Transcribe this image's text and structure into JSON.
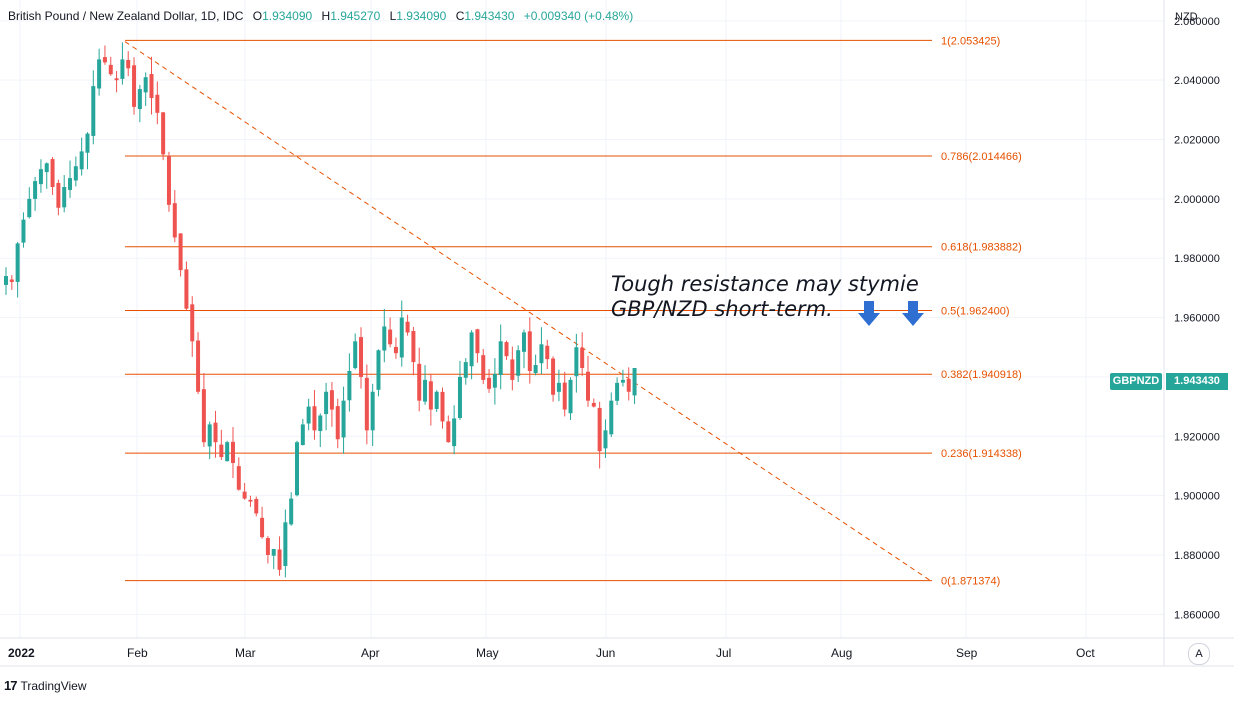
{
  "header": {
    "symbol": "British Pound / New Zealand Dollar, 1D, IDC",
    "open_label": "O",
    "open_value": "1.934090",
    "high_label": "H",
    "high_value": "1.945270",
    "low_label": "L",
    "low_value": "1.934090",
    "close_label": "C",
    "close_value": "1.943430",
    "change_value": "+0.009340 (+0.48%)"
  },
  "currency_label": "NZD",
  "price_tag": {
    "symbol": "GBPNZD",
    "value": "1.943430"
  },
  "annotation": {
    "line1": "Tough resistance may stymie",
    "line2": "GBP/NZD short-term."
  },
  "auto_button": "A",
  "branding": {
    "logo": "17",
    "name": "TradingView"
  },
  "colors": {
    "up": "#26a69a",
    "down": "#ef5350",
    "fib": "#e65100",
    "arrow": "#2962ff",
    "grid": "#f0f3fa",
    "text": "#131722"
  },
  "chart_data": {
    "type": "candlestick",
    "y_range": [
      1.85,
      2.065
    ],
    "y_ticks": [
      "2.060000",
      "2.040000",
      "2.020000",
      "2.000000",
      "1.980000",
      "1.960000",
      "1.940000",
      "1.920000",
      "1.900000",
      "1.880000",
      "1.860000"
    ],
    "x_ticks": [
      "2022",
      "Feb",
      "Mar",
      "Apr",
      "May",
      "Jun",
      "Jul",
      "Aug",
      "Sep",
      "Oct"
    ],
    "fib_levels": [
      {
        "ratio": 1,
        "value": 2.053425,
        "label": "1(2.053425)"
      },
      {
        "ratio": 0.786,
        "value": 2.014466,
        "label": "0.786(2.014466)"
      },
      {
        "ratio": 0.618,
        "value": 1.983882,
        "label": "0.618(1.983882)"
      },
      {
        "ratio": 0.5,
        "value": 1.9624,
        "label": "0.5(1.962400)"
      },
      {
        "ratio": 0.382,
        "value": 1.940918,
        "label": "0.382(1.940918)"
      },
      {
        "ratio": 0.236,
        "value": 1.914338,
        "label": "0.236(1.914338)"
      },
      {
        "ratio": 0,
        "value": 1.871374,
        "label": "0(1.871374)"
      }
    ],
    "trendline": {
      "start": 2.053,
      "end": 1.871
    },
    "close_path": [
      1.974,
      1.972,
      1.985,
      1.993,
      2.0,
      2.006,
      2.01,
      2.012,
      2.004,
      1.997,
      2.004,
      2.007,
      2.011,
      2.016,
      2.022,
      2.038,
      2.047,
      2.046,
      2.042,
      2.04,
      2.047,
      2.044,
      2.031,
      2.037,
      2.041,
      2.034,
      2.029,
      2.015,
      1.998,
      1.987,
      1.976,
      1.963,
      1.952,
      1.935,
      1.918,
      1.924,
      1.918,
      1.913,
      1.918,
      1.911,
      1.902,
      1.899,
      1.898,
      1.894,
      1.886,
      1.88,
      1.882,
      1.875,
      1.891,
      1.899,
      1.918,
      1.924,
      1.93,
      1.922,
      1.927,
      1.935,
      1.929,
      1.919,
      1.932,
      1.942,
      1.952,
      1.94,
      1.922,
      1.935,
      1.949,
      1.957,
      1.951,
      1.948,
      1.96,
      1.955,
      1.945,
      1.932,
      1.939,
      1.929,
      1.935,
      1.925,
      1.918,
      1.926,
      1.94,
      1.945,
      1.955,
      1.948,
      1.939,
      1.936,
      1.941,
      1.952,
      1.947,
      1.939,
      1.949,
      1.955,
      1.942,
      1.944,
      1.951,
      1.946,
      1.934,
      1.938,
      1.929,
      1.939,
      1.95,
      1.943,
      1.932,
      1.93,
      1.915,
      1.922,
      1.932,
      1.938,
      1.939,
      1.935,
      1.943
    ]
  }
}
